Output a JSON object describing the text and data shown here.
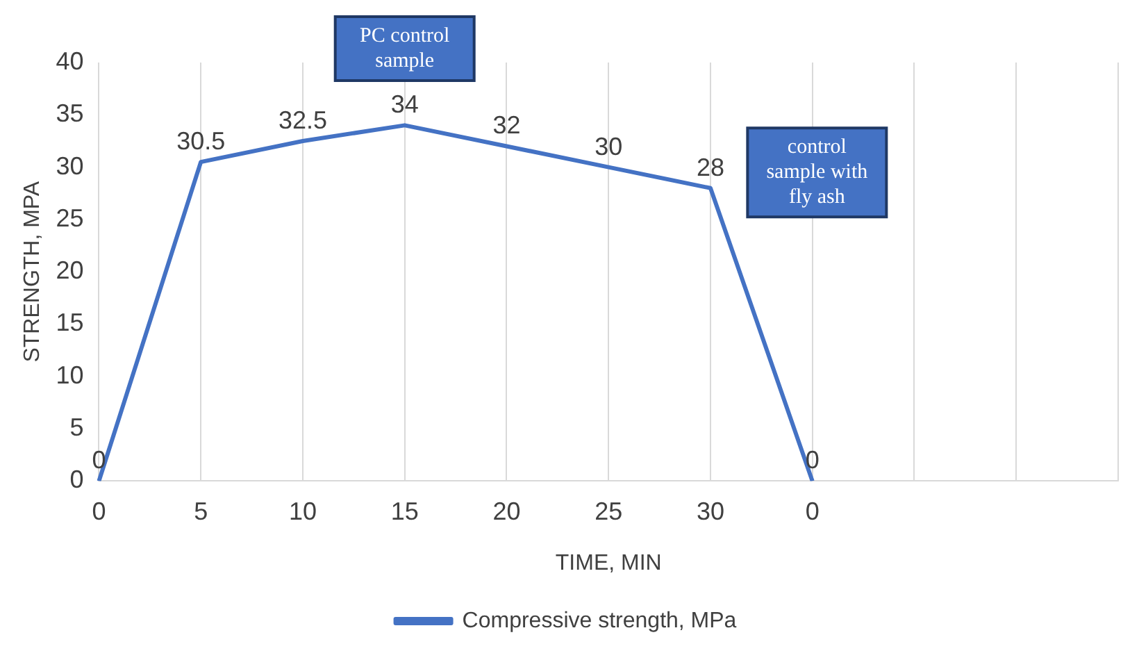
{
  "chart_data": {
    "type": "line",
    "xlabel": "TIME, MIN",
    "ylabel": "STRENGTH, MPA",
    "categories": [
      "0",
      "5",
      "10",
      "15",
      "20",
      "25",
      "30",
      "0",
      null,
      null,
      null
    ],
    "series": [
      {
        "name": "Compressive strength, MPa",
        "color": "#4472c4",
        "values": [
          0,
          30.5,
          32.5,
          34,
          32,
          30,
          28,
          0,
          null,
          null,
          null
        ]
      }
    ],
    "ylim": [
      0,
      40
    ],
    "yticks": [
      0,
      5,
      10,
      15,
      20,
      25,
      30,
      35,
      40
    ],
    "grid": "x",
    "legend": "bottom",
    "marker": "none",
    "line_style": "solid",
    "data_labels": true,
    "annotations": [
      "PC control sample",
      "control sample with fly ash"
    ]
  }
}
